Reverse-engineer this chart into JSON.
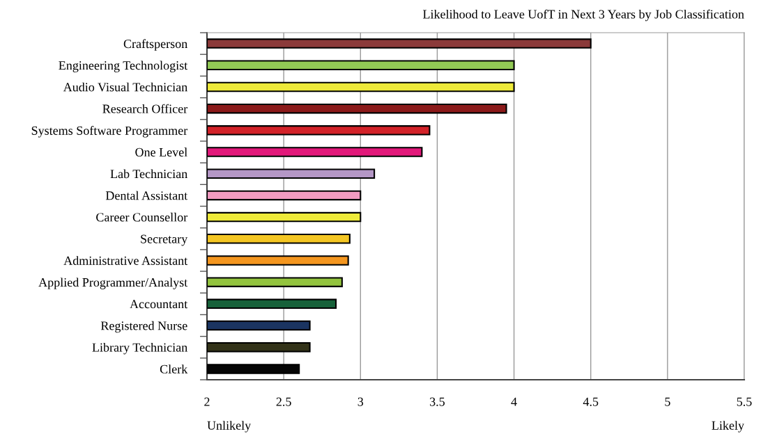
{
  "chart_data": {
    "type": "bar",
    "orientation": "horizontal",
    "title": "Likelihood to Leave UofT in Next 3 Years by Job Classification",
    "categories": [
      "Craftsperson",
      "Engineering Technologist",
      "Audio Visual Technician",
      "Research Officer",
      "Systems Software Programmer",
      "One Level",
      "Lab Technician",
      "Dental Assistant",
      "Career Counsellor",
      "Secretary",
      "Administrative Assistant",
      "Applied Programmer/Analyst",
      "Accountant",
      "Registered Nurse",
      "Library Technician",
      "Clerk"
    ],
    "values": [
      4.5,
      4.0,
      4.0,
      3.95,
      3.45,
      3.4,
      3.09,
      3.0,
      3.0,
      2.93,
      2.92,
      2.88,
      2.84,
      2.67,
      2.67,
      2.6
    ],
    "colors": [
      "#8b3a3a",
      "#92c955",
      "#eeea3a",
      "#8b1a1a",
      "#d22229",
      "#e2187a",
      "#b497c6",
      "#f29bc1",
      "#eeea3a",
      "#f4c623",
      "#f4961f",
      "#93c43e",
      "#17613a",
      "#1b3461",
      "#333319",
      "#050505"
    ],
    "xlim": [
      2,
      5.5
    ],
    "xticks": [
      2,
      2.5,
      3,
      3.5,
      4,
      4.5,
      5,
      5.5
    ],
    "grid": "x",
    "annotations": [
      "Unlikely",
      "Likely"
    ]
  }
}
